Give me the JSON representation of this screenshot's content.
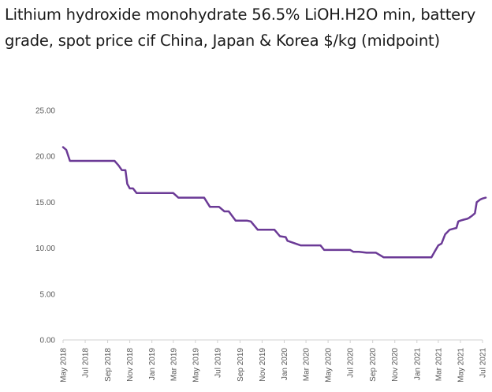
{
  "chart_data": {
    "type": "line",
    "title": "Lithium hydroxide monohydrate 56.5% LiOH.H2O min, battery grade, spot price cif China, Japan & Korea $/kg (midpoint)",
    "xlabel": "",
    "ylabel": "",
    "ylim": [
      0,
      25
    ],
    "yticks": [
      "0.00",
      "5.00",
      "10.00",
      "15.00",
      "20.00",
      "25.00"
    ],
    "xticks": [
      "May 2018",
      "Jul 2018",
      "Sep 2018",
      "Nov 2018",
      "Jan 2019",
      "Mar 2019",
      "May 2019",
      "Jul 2019",
      "Sep 2019",
      "Nov 2019",
      "Jan 2020",
      "Mar 2020",
      "May 2020",
      "Jul 2020",
      "Sep 2020",
      "Nov 2020",
      "Jan 2021",
      "Mar 2021",
      "May 2021",
      "Jul 2021"
    ],
    "grid": false,
    "legend": "none",
    "line_color": "#6b3a96",
    "series": [
      {
        "name": "",
        "x": [
          "2018-05-01",
          "2018-05-10",
          "2018-05-20",
          "2018-06-15",
          "2018-08-01",
          "2018-09-20",
          "2018-10-01",
          "2018-10-10",
          "2018-10-20",
          "2018-10-25",
          "2018-11-01",
          "2018-11-10",
          "2018-11-20",
          "2018-12-15",
          "2019-01-15",
          "2019-03-01",
          "2019-03-15",
          "2019-04-15",
          "2019-05-15",
          "2019-05-25",
          "2019-06-10",
          "2019-06-25",
          "2019-07-05",
          "2019-07-20",
          "2019-08-01",
          "2019-08-20",
          "2019-09-10",
          "2019-09-20",
          "2019-10-01",
          "2019-10-20",
          "2019-11-10",
          "2019-11-25",
          "2019-12-05",
          "2019-12-20",
          "2020-01-05",
          "2020-01-10",
          "2020-02-15",
          "2020-03-15",
          "2020-04-10",
          "2020-04-20",
          "2020-05-15",
          "2020-06-15",
          "2020-07-01",
          "2020-07-10",
          "2020-07-25",
          "2020-08-15",
          "2020-09-01",
          "2020-09-10",
          "2020-10-01",
          "2020-11-15",
          "2021-01-01",
          "2021-02-10",
          "2021-02-20",
          "2021-03-01",
          "2021-03-10",
          "2021-03-20",
          "2021-03-25",
          "2021-04-01",
          "2021-04-10",
          "2021-04-20",
          "2021-04-25",
          "2021-05-01",
          "2021-05-10",
          "2021-05-20",
          "2021-05-25",
          "2021-06-01",
          "2021-06-10",
          "2021-06-15",
          "2021-06-25",
          "2021-07-01",
          "2021-07-10"
        ],
        "values": [
          21,
          20.7,
          19.5,
          19.5,
          19.5,
          19.5,
          19,
          18.5,
          18.5,
          17,
          16.5,
          16.5,
          16,
          16,
          16,
          16,
          15.5,
          15.5,
          15.5,
          15.5,
          14.5,
          14.5,
          14.5,
          14,
          14,
          13,
          13,
          13,
          12.9,
          12,
          12,
          12,
          12,
          11.3,
          11.2,
          10.8,
          10.3,
          10.3,
          10.3,
          9.8,
          9.8,
          9.8,
          9.8,
          9.6,
          9.6,
          9.5,
          9.5,
          9.5,
          9.0,
          9.0,
          9.0,
          9.0,
          9.7,
          10.3,
          10.5,
          11.5,
          11.7,
          12.0,
          12.1,
          12.2,
          12.9,
          13.0,
          13.1,
          13.2,
          13.3,
          13.5,
          13.8,
          15.0,
          15.3,
          15.4,
          15.5
        ]
      }
    ]
  }
}
